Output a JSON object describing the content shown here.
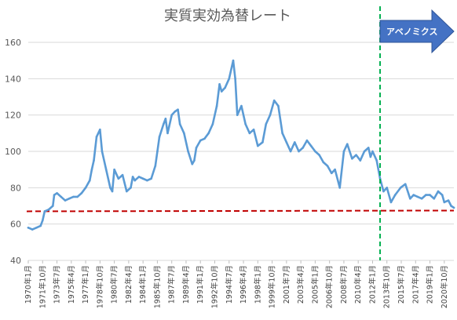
{
  "chart_data": {
    "type": "line",
    "title": "実質実効為替レート",
    "xlabel": "",
    "ylabel": "",
    "ylim": [
      40,
      160
    ],
    "yticks": [
      40,
      60,
      80,
      100,
      120,
      140,
      160
    ],
    "grid": true,
    "legend": "none",
    "x_start": "1970年1月",
    "x_end": "2021年12月",
    "x_tick_labels": [
      "1970年1月",
      "1971年10月",
      "1973年7月",
      "1975年4月",
      "1977年1月",
      "1978年10月",
      "1980年7月",
      "1982年4月",
      "1984年1月",
      "1985年10月",
      "1987年7月",
      "1989年4月",
      "1991年1月",
      "1992年10月",
      "1994年7月",
      "1996年4月",
      "1998年1月",
      "1999年10月",
      "2001年7月",
      "2003年4月",
      "2005年1月",
      "2006年10月",
      "2008年7月",
      "2010年4月",
      "2012年1月",
      "2013年10月",
      "2015年7月",
      "2017年4月",
      "2019年1月",
      "2020年10月"
    ],
    "series": [
      {
        "color": "#5b9bd5",
        "x": [
          "1970-01",
          "1970-07",
          "1971-01",
          "1971-07",
          "1971-10",
          "1972-01",
          "1972-07",
          "1973-01",
          "1973-03",
          "1973-07",
          "1974-01",
          "1974-07",
          "1975-01",
          "1975-07",
          "1976-01",
          "1976-07",
          "1977-01",
          "1977-07",
          "1977-10",
          "1978-01",
          "1978-05",
          "1978-10",
          "1979-01",
          "1979-07",
          "1980-01",
          "1980-04",
          "1980-07",
          "1981-01",
          "1981-07",
          "1982-01",
          "1982-07",
          "1982-10",
          "1983-01",
          "1983-07",
          "1984-01",
          "1984-07",
          "1985-01",
          "1985-07",
          "1985-10",
          "1986-01",
          "1986-07",
          "1986-10",
          "1987-01",
          "1987-07",
          "1987-12",
          "1988-04",
          "1988-07",
          "1989-01",
          "1989-07",
          "1990-01",
          "1990-04",
          "1990-07",
          "1991-01",
          "1991-07",
          "1992-01",
          "1992-07",
          "1993-01",
          "1993-05",
          "1993-08",
          "1994-01",
          "1994-07",
          "1995-01",
          "1995-04",
          "1995-07",
          "1996-01",
          "1996-07",
          "1997-01",
          "1997-07",
          "1998-01",
          "1998-08",
          "1999-01",
          "1999-07",
          "2000-01",
          "2000-07",
          "2001-01",
          "2001-07",
          "2002-01",
          "2002-07",
          "2003-01",
          "2003-07",
          "2004-01",
          "2004-07",
          "2005-01",
          "2005-07",
          "2006-01",
          "2006-07",
          "2007-01",
          "2007-06",
          "2008-01",
          "2008-07",
          "2008-12",
          "2009-07",
          "2010-01",
          "2010-07",
          "2011-01",
          "2011-07",
          "2011-10",
          "2012-01",
          "2012-07",
          "2012-12",
          "2013-05",
          "2013-10",
          "2014-04",
          "2014-10",
          "2015-06",
          "2016-01",
          "2016-08",
          "2017-01",
          "2017-07",
          "2018-01",
          "2018-07",
          "2019-01",
          "2019-07",
          "2020-01",
          "2020-07",
          "2020-10",
          "2021-04",
          "2021-08",
          "2021-12"
        ],
        "values": [
          58,
          57,
          58,
          59,
          62,
          67,
          68,
          70,
          76,
          77,
          75,
          73,
          74,
          75,
          75,
          77,
          80,
          84,
          90,
          95,
          108,
          112,
          100,
          90,
          80,
          78,
          90,
          85,
          87,
          78,
          80,
          86,
          84,
          86,
          85,
          84,
          85,
          92,
          100,
          108,
          115,
          118,
          110,
          120,
          122,
          123,
          115,
          110,
          100,
          93,
          95,
          102,
          106,
          107,
          110,
          115,
          125,
          137,
          133,
          135,
          140,
          150,
          140,
          120,
          125,
          115,
          110,
          112,
          103,
          105,
          115,
          120,
          128,
          125,
          110,
          105,
          100,
          105,
          100,
          102,
          106,
          103,
          100,
          98,
          94,
          92,
          88,
          90,
          80,
          100,
          104,
          96,
          98,
          95,
          100,
          102,
          97,
          100,
          95,
          85,
          78,
          80,
          72,
          76,
          80,
          82,
          74,
          76,
          75,
          74,
          76,
          76,
          74,
          78,
          76,
          72,
          73,
          70,
          69
        ]
      }
    ],
    "reference_line": {
      "value": 67,
      "color": "#c00000",
      "style": "dashed"
    },
    "event_marker": {
      "x": "2012-12",
      "color": "#00b050",
      "style": "dashed",
      "label": "アベノミクス",
      "arrow_color": "#4472c4"
    }
  }
}
